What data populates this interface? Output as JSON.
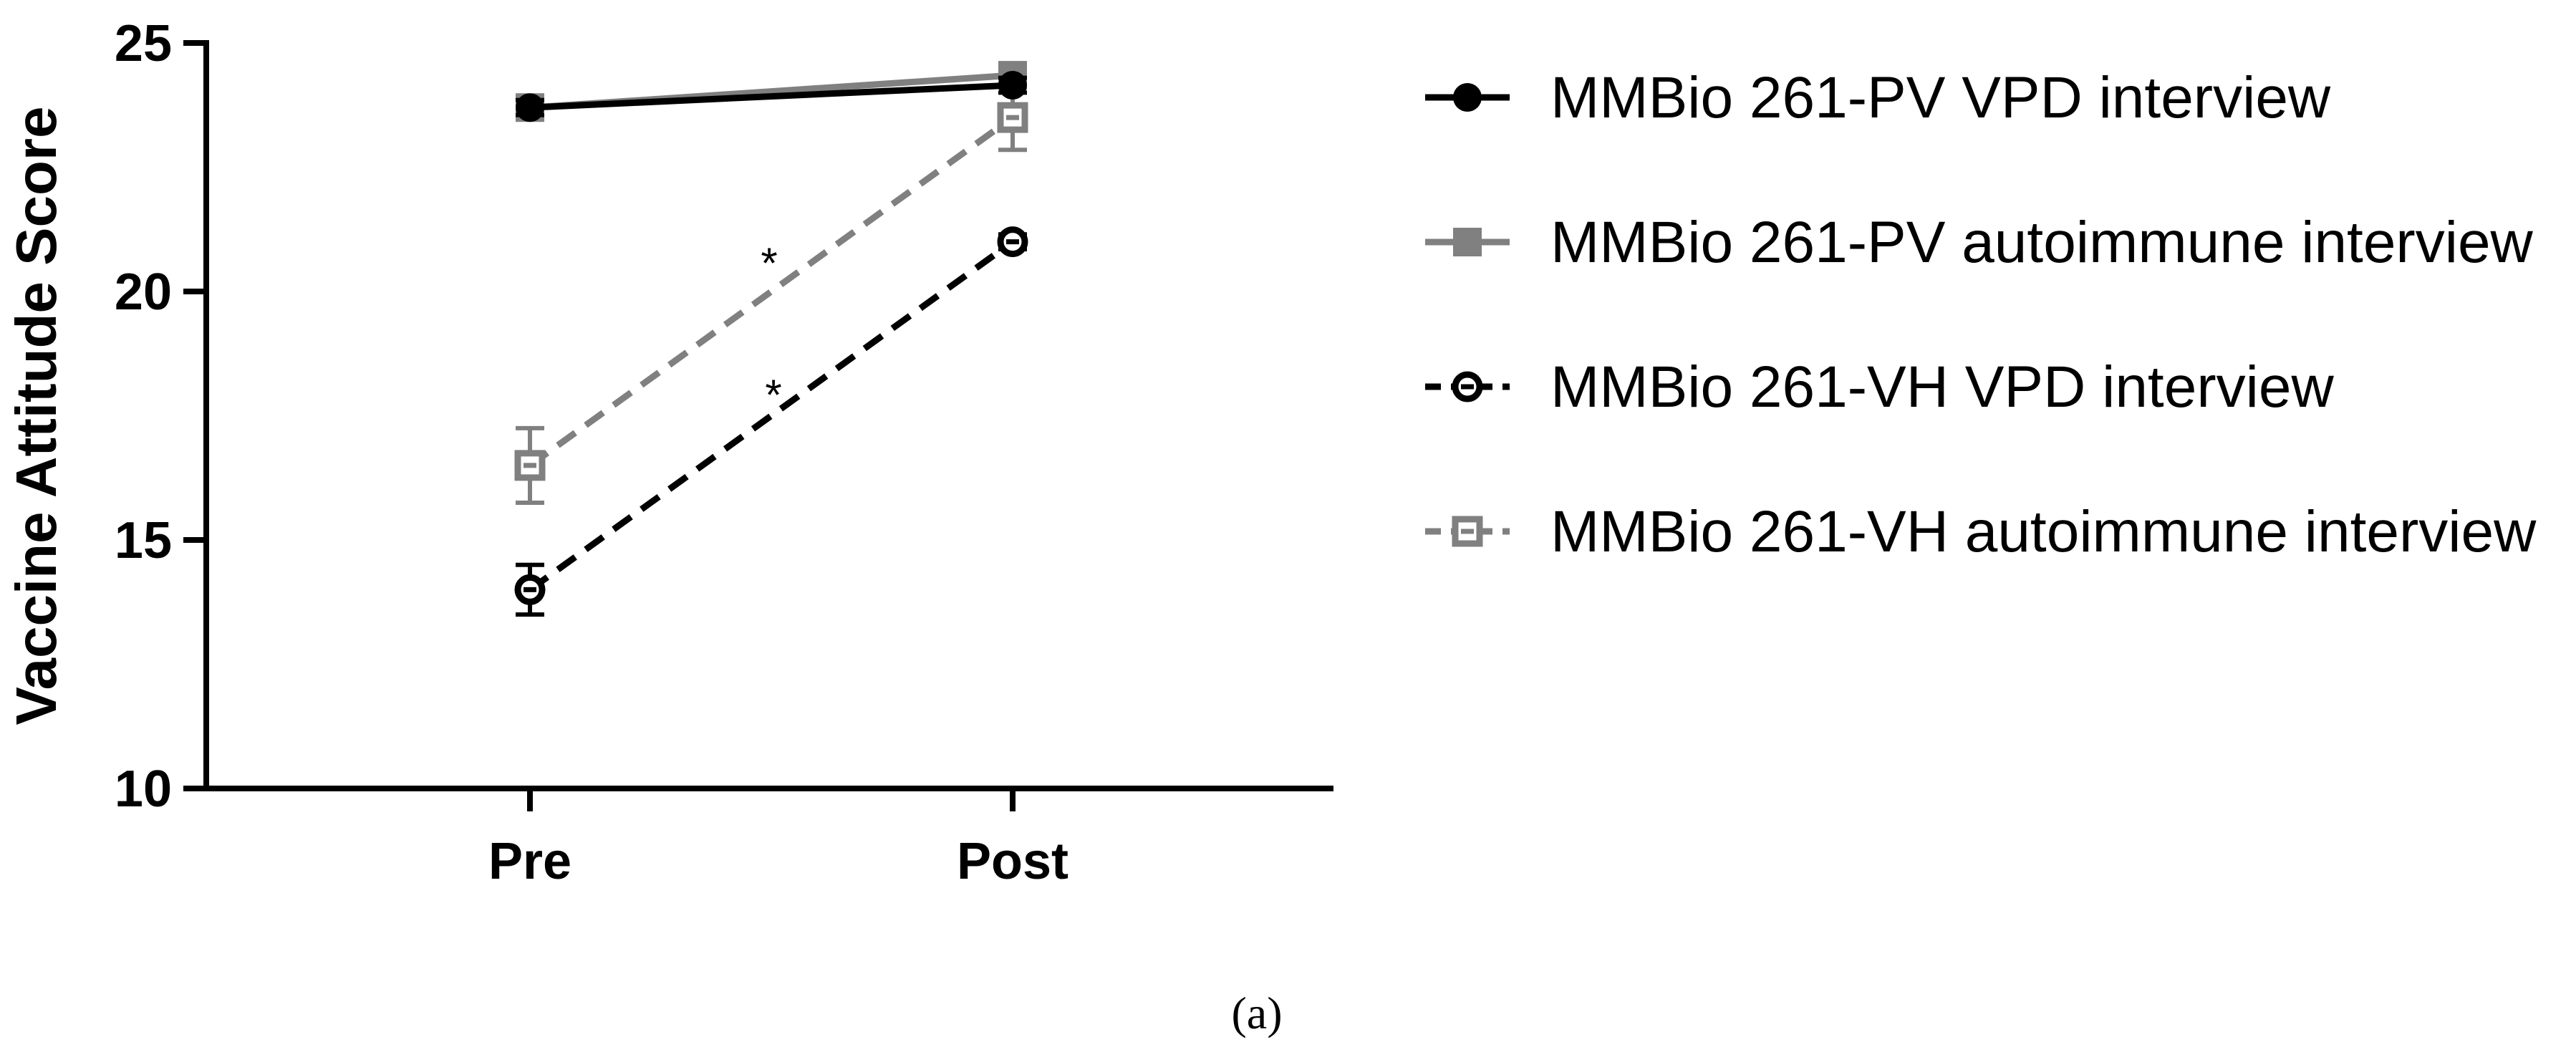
{
  "chart_data": {
    "type": "line",
    "title": "",
    "xlabel": "",
    "ylabel": "Vaccine Attitude Score",
    "categories": [
      "Pre",
      "Post"
    ],
    "ylim": [
      10,
      25
    ],
    "yticks": [
      "10",
      "15",
      "20",
      "25"
    ],
    "grid": false,
    "legend_position": "right",
    "series": [
      {
        "name": "MMBio 261-PV VPD interview",
        "values": [
          23.7,
          24.15
        ],
        "error": [
          0.15,
          0.15
        ],
        "color": "#000000",
        "line_style": "solid",
        "marker": "filled-circle"
      },
      {
        "name": "MMBio 261-PV autoimmune interview",
        "values": [
          23.7,
          24.35
        ],
        "error": [
          0.15,
          0.15
        ],
        "color": "#808080",
        "line_style": "solid",
        "marker": "filled-square"
      },
      {
        "name": "MMBio 261-VH VPD interview",
        "values": [
          14.0,
          21.0
        ],
        "error": [
          0.5,
          0.15
        ],
        "color": "#000000",
        "line_style": "dashed",
        "marker": "open-circle"
      },
      {
        "name": "MMBio 261-VH autoimmune interview",
        "values": [
          16.5,
          23.5
        ],
        "error": [
          0.75,
          0.65
        ],
        "color": "#808080",
        "line_style": "dashed",
        "marker": "open-square"
      }
    ],
    "annotations": [
      {
        "text": "*",
        "series": "MMBio 261-VH autoimmune interview"
      },
      {
        "text": "*",
        "series": "MMBio 261-VH VPD interview"
      }
    ],
    "caption": "(a)"
  }
}
